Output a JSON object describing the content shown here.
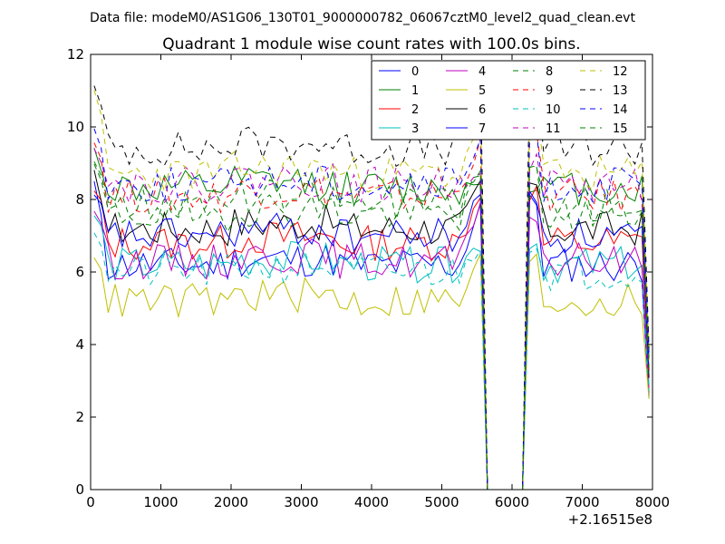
{
  "figure": {
    "suptitle": "Data file: modeM0/AS1G06_130T01_9000000782_06067cztM0_level2_quad_clean.evt",
    "offset_label": "+2.16515e8"
  },
  "chart_data": {
    "type": "line",
    "title": "Quadrant 1 module wise count rates with 100.0s bins.",
    "xlabel": "",
    "ylabel": "",
    "xlim": [
      0,
      8000
    ],
    "ylim": [
      0,
      12
    ],
    "xticks": [
      0,
      1000,
      2000,
      3000,
      4000,
      5000,
      6000,
      7000,
      8000
    ],
    "yticks": [
      0,
      2,
      4,
      6,
      8,
      10,
      12
    ],
    "x_offset": 216515000,
    "bin_seconds": 100,
    "gap": [
      5600,
      6200
    ],
    "legend_location": "upper-right",
    "legend_columns": 4,
    "series": [
      {
        "name": "0",
        "color": "#0000ff",
        "style": "solid",
        "level": 6.2,
        "start": 8.3,
        "peak": 7.9,
        "seed": 11
      },
      {
        "name": "1",
        "color": "#008000",
        "style": "solid",
        "level": 8.3,
        "start": 9.3,
        "peak": 8.5,
        "seed": 12
      },
      {
        "name": "2",
        "color": "#ff0000",
        "style": "solid",
        "level": 6.8,
        "start": 8.2,
        "peak": 8.2,
        "seed": 13
      },
      {
        "name": "3",
        "color": "#00bfbf",
        "style": "solid",
        "level": 6.2,
        "start": 7.6,
        "peak": 6.8,
        "seed": 14
      },
      {
        "name": "4",
        "color": "#bf00bf",
        "style": "solid",
        "level": 6.3,
        "start": 7.8,
        "peak": 7.6,
        "seed": 15
      },
      {
        "name": "5",
        "color": "#bfbf00",
        "style": "solid",
        "level": 5.2,
        "start": 6.6,
        "peak": 6.3,
        "seed": 16
      },
      {
        "name": "6",
        "color": "#000000",
        "style": "solid",
        "level": 7.2,
        "start": 8.6,
        "peak": 8.4,
        "seed": 17
      },
      {
        "name": "7",
        "color": "#0000ff",
        "style": "solid",
        "level": 7.0,
        "start": 8.0,
        "peak": 8.1,
        "seed": 18
      },
      {
        "name": "8",
        "color": "#008000",
        "style": "dashed",
        "level": 7.6,
        "start": 9.0,
        "peak": 8.7,
        "seed": 19
      },
      {
        "name": "9",
        "color": "#ff0000",
        "style": "dashed",
        "level": 8.1,
        "start": 9.6,
        "peak": 9.8,
        "seed": 20
      },
      {
        "name": "10",
        "color": "#00bfbf",
        "style": "dashed",
        "level": 6.0,
        "start": 7.2,
        "peak": 6.8,
        "seed": 21
      },
      {
        "name": "11",
        "color": "#bf00bf",
        "style": "dashed",
        "level": 8.4,
        "start": 9.6,
        "peak": 9.0,
        "seed": 22
      },
      {
        "name": "12",
        "color": "#bfbf00",
        "style": "dashed",
        "level": 8.7,
        "start": 10.8,
        "peak": 10.4,
        "seed": 23
      },
      {
        "name": "13",
        "color": "#000000",
        "style": "dashed",
        "level": 9.4,
        "start": 11.0,
        "peak": 11.5,
        "seed": 24
      },
      {
        "name": "14",
        "color": "#0000ff",
        "style": "dashed",
        "level": 8.4,
        "start": 9.9,
        "peak": 9.6,
        "seed": 25
      },
      {
        "name": "15",
        "color": "#008000",
        "style": "dashed",
        "level": 7.9,
        "start": 9.0,
        "peak": 8.8,
        "seed": 26
      }
    ]
  }
}
